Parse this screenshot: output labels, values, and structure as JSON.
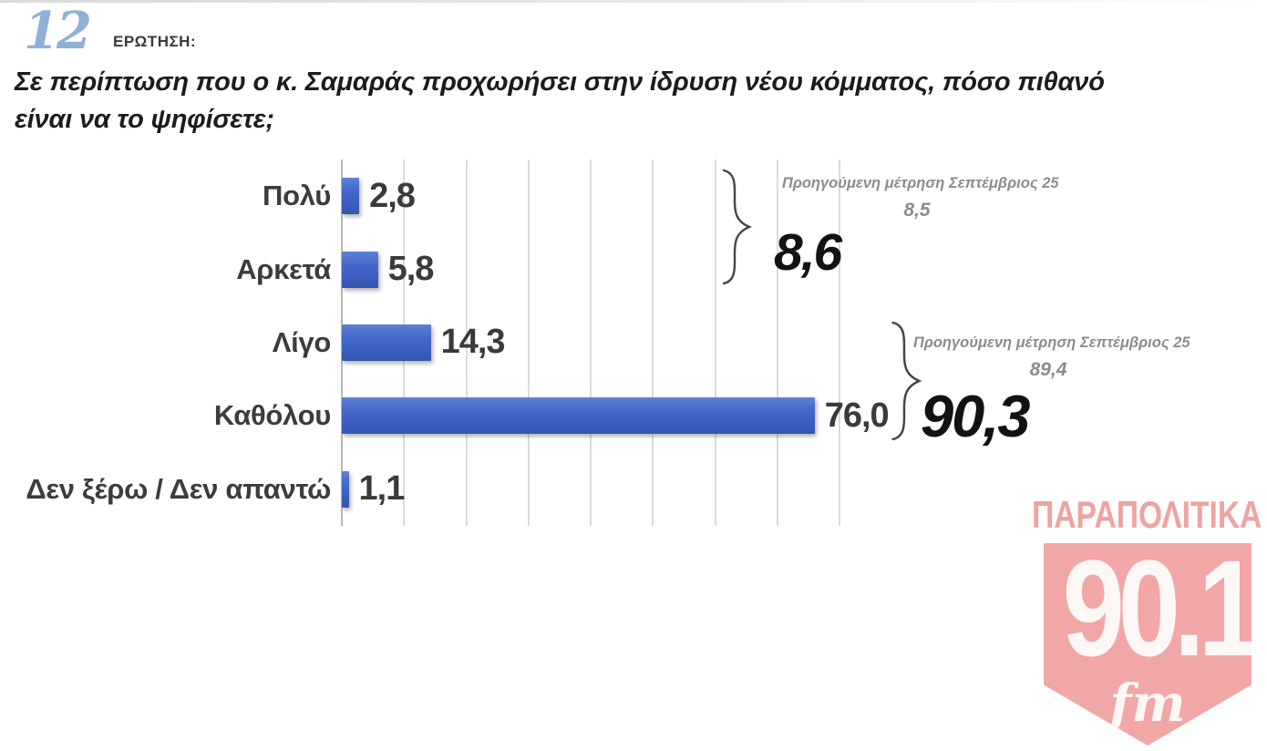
{
  "header": {
    "question_number": "12",
    "question_label": "ΕΡΩΤΗΣΗ:",
    "question_line1": "Σε περίπτωση που ο κ. Σαμαράς προχωρήσει στην ίδρυση νέου κόμματος, πόσο πιθανό",
    "question_line2": "είναι να το ψηφίσετε;"
  },
  "chart_data": {
    "type": "bar",
    "orientation": "horizontal",
    "categories": [
      "Πολύ",
      "Αρκετά",
      "Λίγο",
      "Καθόλου",
      "Δεν ξέρω / Δεν απαντώ"
    ],
    "values": [
      2.8,
      5.8,
      14.3,
      76.0,
      1.1
    ],
    "value_labels": [
      "2,8",
      "5,8",
      "14,3",
      "76,0",
      "1,1"
    ],
    "xlim": [
      0,
      80
    ],
    "gridline_step": 10,
    "grid": true,
    "legend_position": "none",
    "bar_color": "#3e63c4",
    "annotations": [
      {
        "applies_to": [
          "Πολύ",
          "Αρκετά"
        ],
        "note": "Προηγούμενη μέτρηση Σεπτέμβριος 25",
        "previous_value": "8,5",
        "current_total": "8,6"
      },
      {
        "applies_to": [
          "Καθόλου"
        ],
        "note": "Προηγούμενη μέτρηση Σεπτέμβριος 25",
        "previous_value": "89,4",
        "current_total": "90,3"
      }
    ]
  },
  "logo": {
    "brand": "ΠΑΡΑΠΟΛΙΤΙΚΑ",
    "frequency": "90.1",
    "band": "fm",
    "color": "#f0a7a5"
  }
}
